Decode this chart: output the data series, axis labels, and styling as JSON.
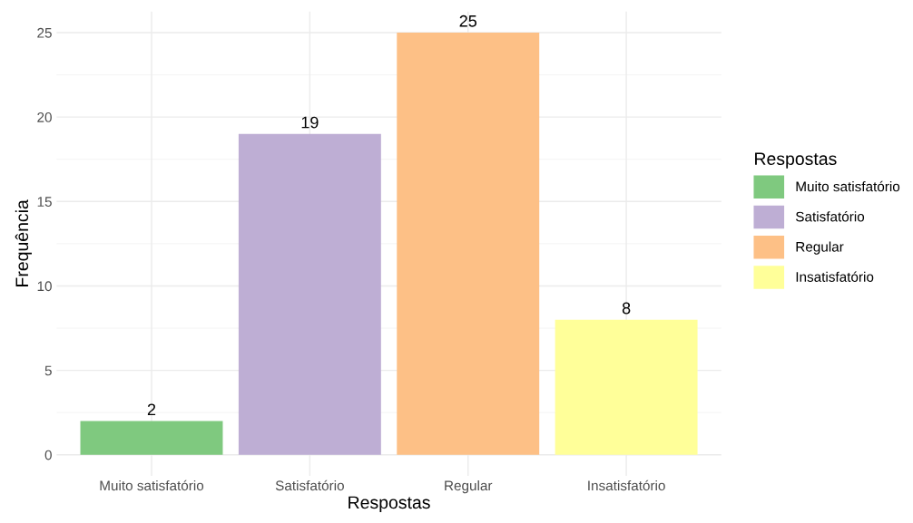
{
  "chart_data": {
    "type": "bar",
    "xlabel": "Respostas",
    "ylabel": "Frequência",
    "legend_title": "Respostas",
    "categories": [
      "Muito satisfatório",
      "Satisfatório",
      "Regular",
      "Insatisfatório"
    ],
    "series": [
      {
        "name": "Muito satisfatório",
        "color": "#7fc97f",
        "values": [
          2,
          null,
          null,
          null
        ]
      },
      {
        "name": "Satisfatório",
        "color": "#beaed4",
        "values": [
          null,
          19,
          null,
          null
        ]
      },
      {
        "name": "Regular",
        "color": "#fdc086",
        "values": [
          null,
          null,
          25,
          null
        ]
      },
      {
        "name": "Insatisfatório",
        "color": "#ffff99",
        "values": [
          null,
          null,
          null,
          8
        ]
      }
    ],
    "ylim": [
      -1.25,
      26.25
    ],
    "yticks": [
      0,
      5,
      10,
      15,
      20,
      25
    ],
    "grid": true,
    "legend": "right",
    "data_labels": true
  }
}
